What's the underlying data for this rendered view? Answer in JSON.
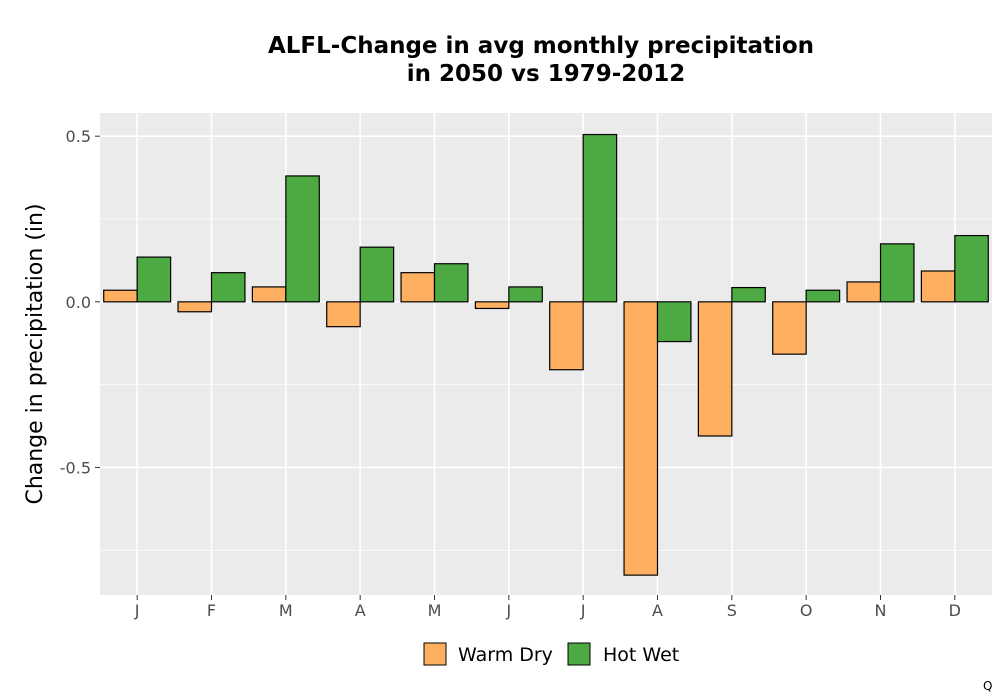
{
  "chart_data": {
    "type": "bar",
    "title_line1": "ALFL-Change in avg monthly precipitation",
    "title_line2": "in 2050 vs 1979-2012",
    "xlabel": "",
    "ylabel": "Change in precipitation (in)",
    "categories": [
      "J",
      "F",
      "M",
      "A",
      "M",
      "J",
      "J",
      "A",
      "S",
      "O",
      "N",
      "D"
    ],
    "series": [
      {
        "name": "Warm Dry",
        "color": "#ffaf60",
        "values": [
          0.035,
          -0.03,
          0.045,
          -0.075,
          0.088,
          -0.02,
          -0.205,
          -0.825,
          -0.405,
          -0.158,
          0.06,
          0.093
        ]
      },
      {
        "name": "Hot Wet",
        "color": "#4daa42",
        "values": [
          0.135,
          0.088,
          0.38,
          0.165,
          0.115,
          0.045,
          0.505,
          -0.12,
          0.043,
          0.035,
          0.175,
          0.2
        ]
      }
    ],
    "ylim": [
      -0.885,
      0.57
    ],
    "yticks": [
      0.5,
      0.0,
      -0.5
    ],
    "ytick_labels": [
      "0.5",
      "0.0",
      "-0.5"
    ],
    "grid": true,
    "legend_position": "bottom",
    "panel_background": "#ebebeb"
  },
  "corner_mark": "Q"
}
